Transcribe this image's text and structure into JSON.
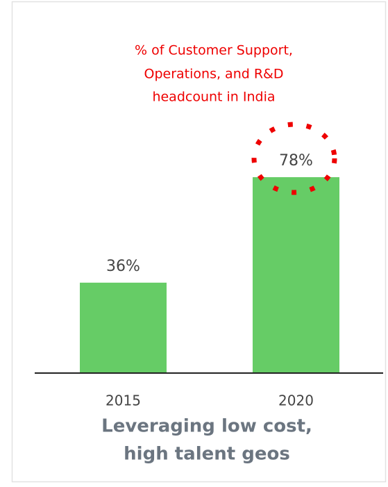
{
  "chart_data": {
    "type": "bar",
    "title": [
      "% of Customer Support,",
      "Operations, and R&D",
      "headcount in India"
    ],
    "caption": [
      "Leveraging low cost,",
      "high talent geos"
    ],
    "categories": [
      "2015",
      "2020"
    ],
    "values": [
      36,
      78
    ],
    "value_labels": [
      "36%",
      "78%"
    ],
    "color": "#66cc66",
    "ylim": [
      0,
      100
    ]
  }
}
